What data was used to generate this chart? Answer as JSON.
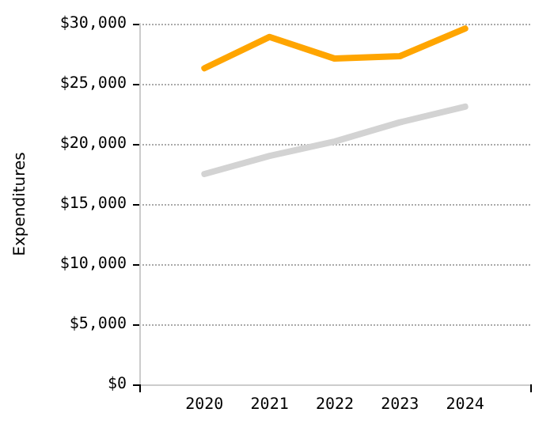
{
  "chart_data": {
    "type": "line",
    "ylabel": "Expenditures",
    "categories": [
      null,
      "2020",
      "2021",
      "2022",
      "2023",
      "2024",
      null
    ],
    "series": [
      {
        "color": "#ffa500",
        "values": [
          null,
          26300,
          28900,
          27100,
          27300,
          29600,
          null
        ]
      },
      {
        "color": "#d3d3d3",
        "values": [
          null,
          17500,
          19000,
          20200,
          21800,
          23100,
          null
        ]
      }
    ],
    "ylim": [
      0,
      30000
    ],
    "yticks": [
      {
        "value": 0,
        "label": "$0"
      },
      {
        "value": 5000,
        "label": "$5,000"
      },
      {
        "value": 10000,
        "label": "$10,000"
      },
      {
        "value": 15000,
        "label": "$15,000"
      },
      {
        "value": 20000,
        "label": "$20,000"
      },
      {
        "value": 25000,
        "label": "$25,000"
      },
      {
        "value": 30000,
        "label": "$30,000"
      }
    ],
    "grid": "y",
    "marker": "none",
    "line_style": "solid"
  }
}
